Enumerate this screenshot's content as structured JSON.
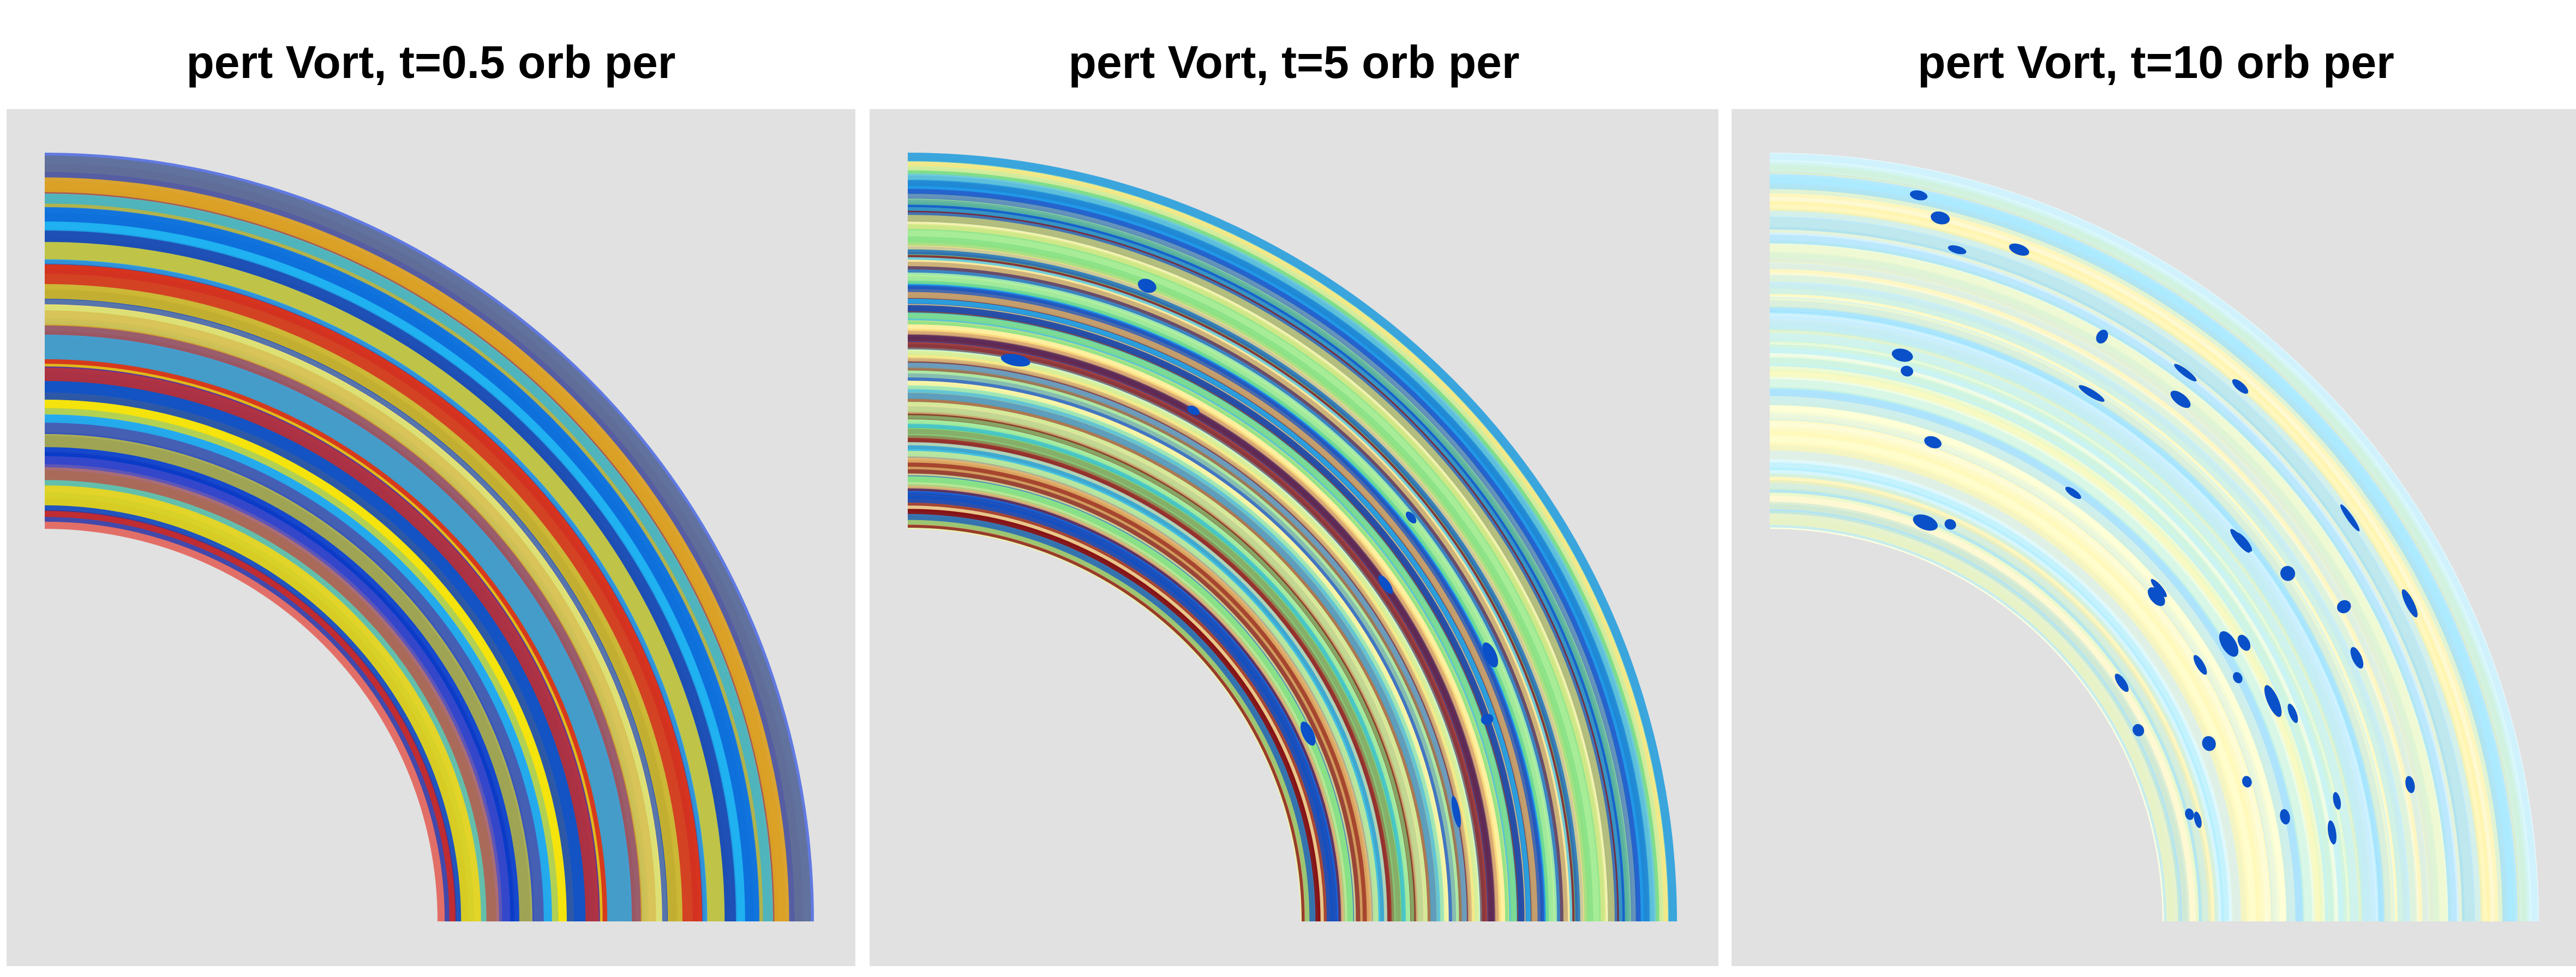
{
  "panels": [
    {
      "title": "pert Vort, t=0.5 orb per",
      "snapshot": "t=0.5",
      "band_width": 70,
      "band_alpha": 0.88,
      "band_count": 46,
      "blob_count": 0,
      "palette": [
        "#d4281e",
        "#ffe600",
        "#0039c8",
        "#1fb4f2",
        "#ffd400",
        "#7fdfff",
        "#1a3fd6"
      ]
    },
    {
      "title": "pert Vort, t=5 orb per",
      "snapshot": "t=5",
      "band_width": 26,
      "band_alpha": 0.82,
      "band_count": 140,
      "blob_count": 9,
      "palette": [
        "#7fdf7f",
        "#ffe680",
        "#1fb4f2",
        "#8a1010",
        "#b9f2a0",
        "#fff3a6",
        "#0a50c8"
      ]
    },
    {
      "title": "pert Vort, t=10 orb per",
      "snapshot": "t=10",
      "band_width": 38,
      "band_alpha": 0.55,
      "band_count": 70,
      "blob_count": 40,
      "palette": [
        "#fff7a8",
        "#bfe9ff",
        "#d9f7c8",
        "#ffffc8",
        "#a8ecff",
        "#fff1a0",
        "#7fd4ff"
      ]
    }
  ],
  "colors": {
    "panel_background": "#e1e1e1",
    "disk_background": "#fdfffa",
    "blob": "#0a50c8",
    "title": "#000000"
  }
}
